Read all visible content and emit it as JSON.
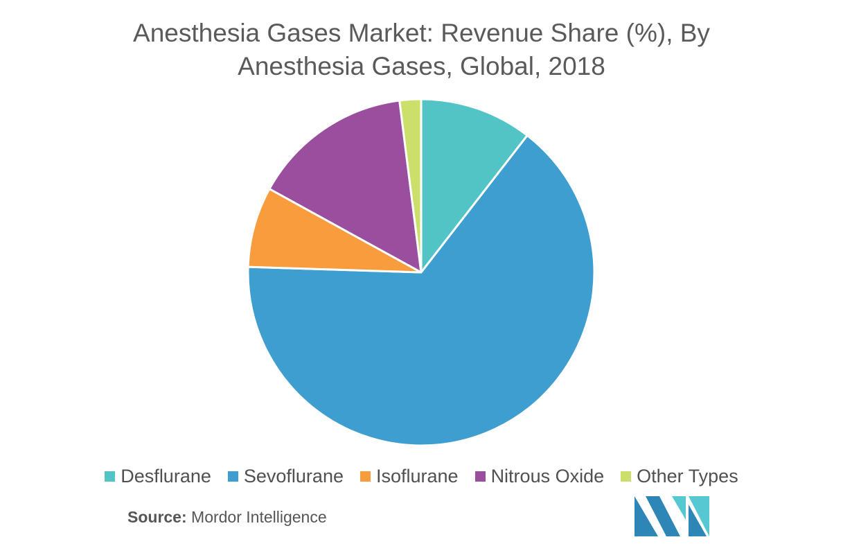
{
  "title_line1": "Anesthesia Gases Market: Revenue Share (%), By",
  "title_line2": "Anesthesia Gases, Global, 2018",
  "chart_data": {
    "type": "pie",
    "title": "Anesthesia Gases Market: Revenue Share (%), By Anesthesia Gases, Global, 2018",
    "categories": [
      "Desflurane",
      "Sevoflurane",
      "Isoflurane",
      "Nitrous Oxide",
      "Other Types"
    ],
    "values": [
      10.5,
      65.0,
      7.5,
      15.0,
      2.0
    ],
    "colors": [
      "#52c4c6",
      "#3d9ecf",
      "#f99c3d",
      "#9a4f9e",
      "#cbdf6a"
    ],
    "start": "12 o'clock, clockwise",
    "legend_position": "bottom"
  },
  "legend": [
    {
      "label": "Desflurane",
      "color": "#52c4c6"
    },
    {
      "label": "Sevoflurane",
      "color": "#3d9ecf"
    },
    {
      "label": "Isoflurane",
      "color": "#f99c3d"
    },
    {
      "label": "Nitrous Oxide",
      "color": "#9a4f9e"
    },
    {
      "label": "Other Types",
      "color": "#cbdf6a"
    }
  ],
  "source": {
    "label": "Source:",
    "text": " Mordor Intelligence"
  },
  "logo": {
    "icon": "mordor-intelligence-logo",
    "colors": [
      "#2e86b7",
      "#55c8d1"
    ]
  }
}
